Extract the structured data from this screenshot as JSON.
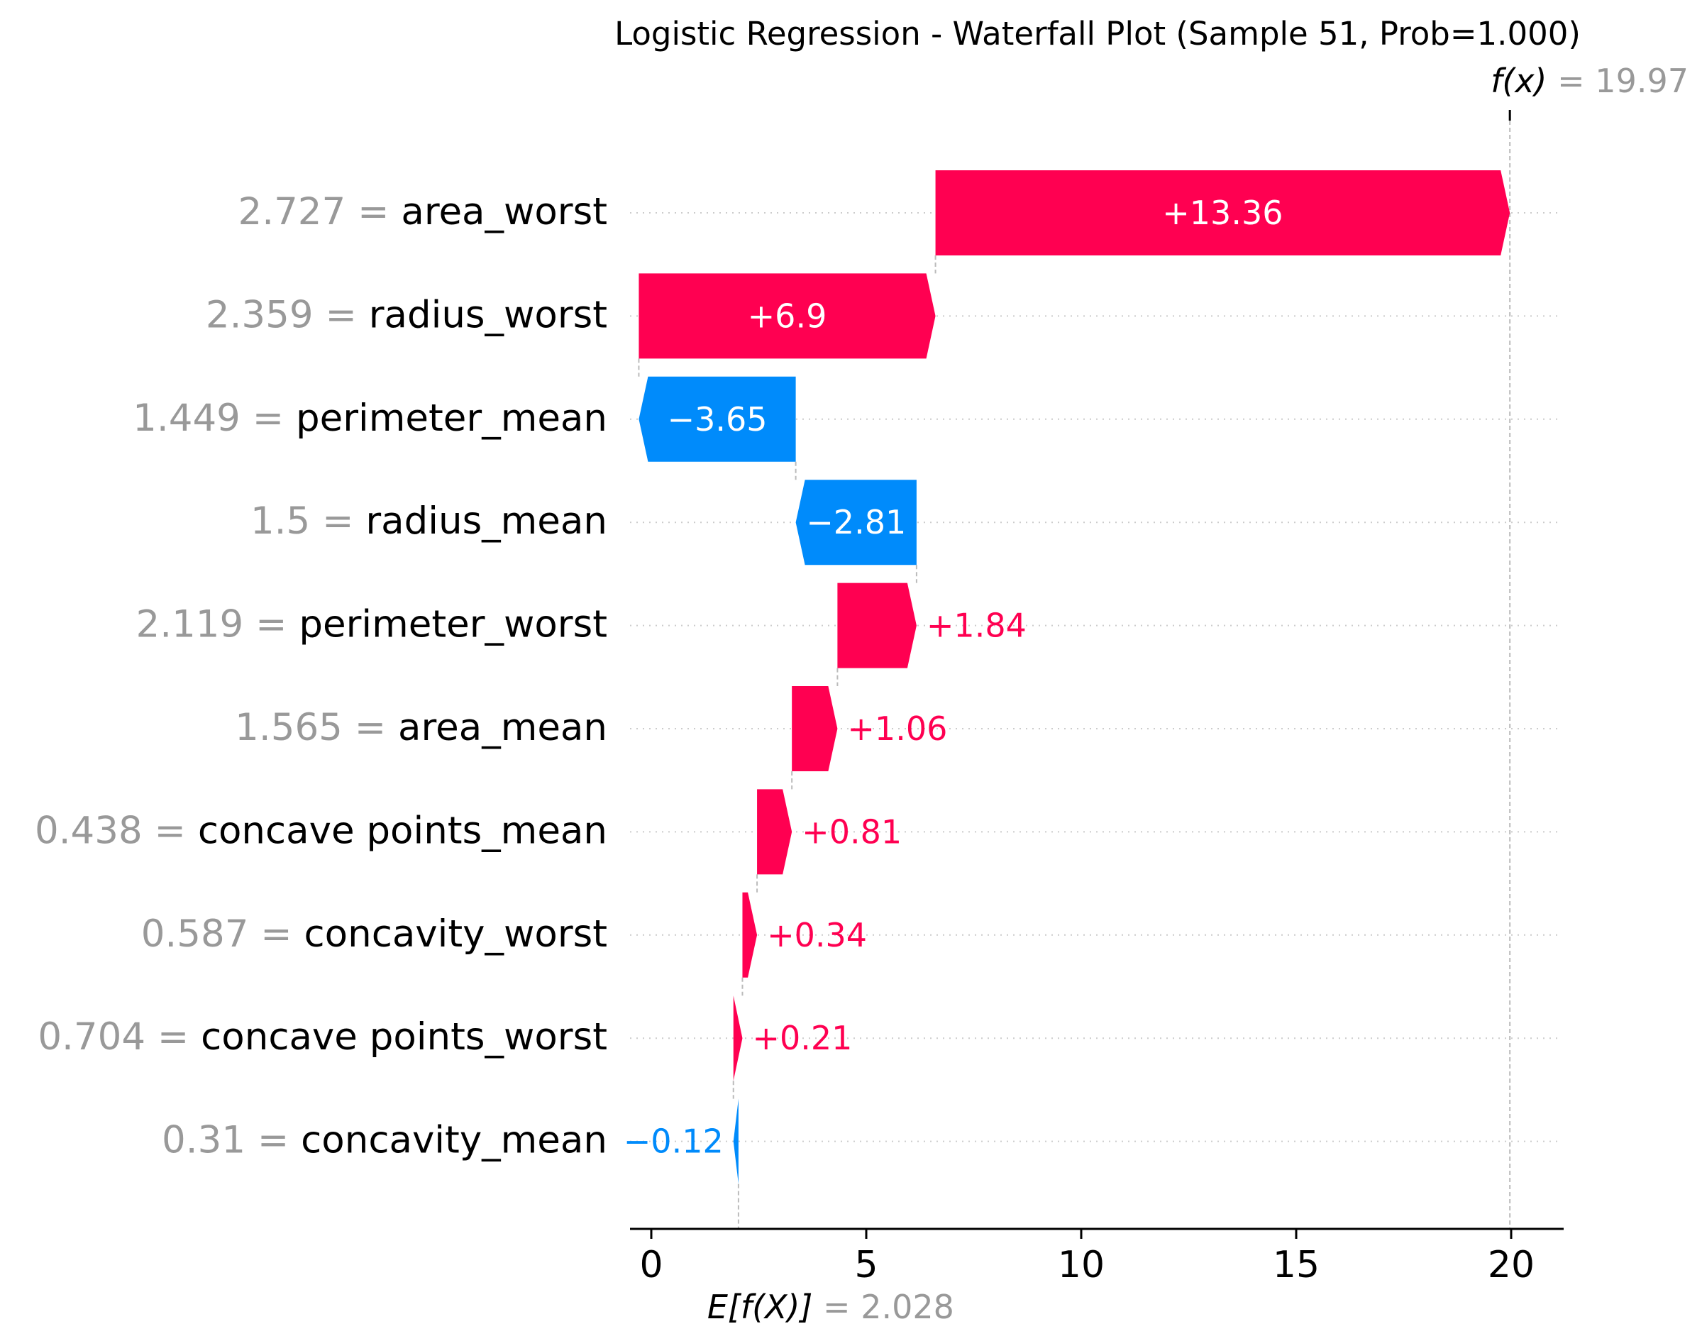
{
  "chart_data": {
    "type": "waterfall",
    "title": "Logistic Regression - Waterfall Plot (Sample 51, Prob=1.000)",
    "base_value": 2.028,
    "base_label": "E[f(X)]",
    "base_value_text": "2.028",
    "output_value": 19.97,
    "output_label": "f(x)",
    "output_value_text": "19.97",
    "xlim": [
      -0.5,
      21.2
    ],
    "x_ticks": [
      0,
      5,
      10,
      15,
      20
    ],
    "x_tick_labels": [
      "0",
      "5",
      "10",
      "15",
      "20"
    ],
    "grid": "dotted-horizontal",
    "features": [
      {
        "feature": "area_worst",
        "feature_value": "2.727",
        "contribution": 13.36,
        "label": "+13.36",
        "start": 6.61,
        "end": 19.97
      },
      {
        "feature": "radius_worst",
        "feature_value": "2.359",
        "contribution": 6.9,
        "label": "+6.9",
        "start": -0.29,
        "end": 6.61
      },
      {
        "feature": "perimeter_mean",
        "feature_value": "1.449",
        "contribution": -3.65,
        "label": "−3.65",
        "start": 3.36,
        "end": -0.29
      },
      {
        "feature": "radius_mean",
        "feature_value": "1.5",
        "contribution": -2.81,
        "label": "−2.81",
        "start": 6.17,
        "end": 3.36
      },
      {
        "feature": "perimeter_worst",
        "feature_value": "2.119",
        "contribution": 1.84,
        "label": "+1.84",
        "start": 4.33,
        "end": 6.17
      },
      {
        "feature": "area_mean",
        "feature_value": "1.565",
        "contribution": 1.06,
        "label": "+1.06",
        "start": 3.27,
        "end": 4.33
      },
      {
        "feature": "concave points_mean",
        "feature_value": "0.438",
        "contribution": 0.81,
        "label": "+0.81",
        "start": 2.46,
        "end": 3.27
      },
      {
        "feature": "concavity_worst",
        "feature_value": "0.587",
        "contribution": 0.34,
        "label": "+0.34",
        "start": 2.12,
        "end": 2.46
      },
      {
        "feature": "concave points_worst",
        "feature_value": "0.704",
        "contribution": 0.21,
        "label": "+0.21",
        "start": 1.91,
        "end": 2.12
      },
      {
        "feature": "concavity_mean",
        "feature_value": "0.31",
        "contribution": -0.12,
        "label": "−0.12",
        "start": 2.028,
        "end": 1.91
      }
    ],
    "colors": {
      "positive": "#ff0051",
      "negative": "#008bfb",
      "feature_value_text": "#999999",
      "feature_name_text": "#000000",
      "grid": "#cccccc",
      "connector": "#bbbbbb"
    }
  }
}
